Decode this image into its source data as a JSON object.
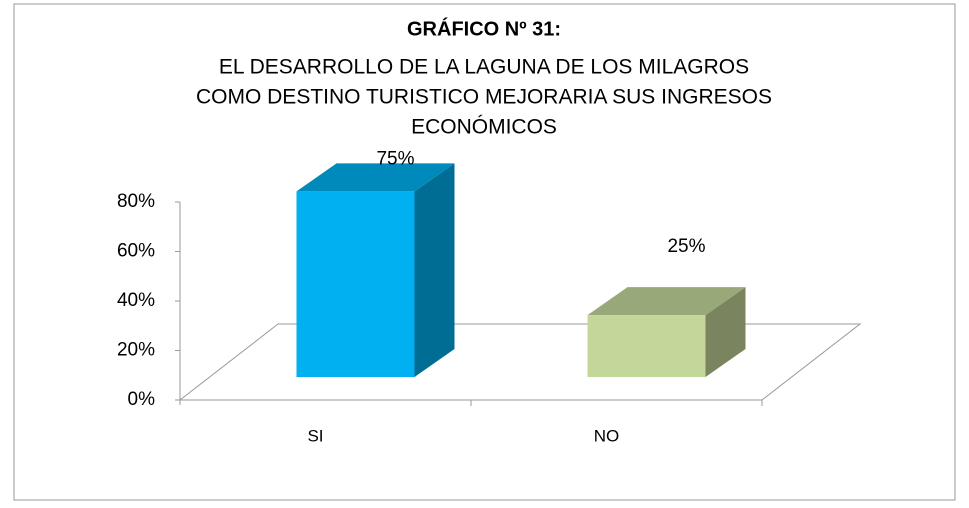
{
  "chart_data": {
    "type": "bar3d",
    "title": "GRÁFICO Nº 31:",
    "subtitle": [
      "EL DESARROLLO DE LA LAGUNA DE LOS MILAGROS",
      "COMO DESTINO TURISTICO MEJORARIA SUS INGRESOS",
      "ECONÓMICOS"
    ],
    "categories": [
      "SI",
      "NO"
    ],
    "values": [
      75,
      25
    ],
    "value_labels": [
      "75%",
      "25%"
    ],
    "colors": [
      "#00b0f0",
      "#c4d79b"
    ],
    "ylim": [
      0,
      80
    ],
    "yticks": [
      {
        "value": 0,
        "label": "0%"
      },
      {
        "value": 20,
        "label": "20%"
      },
      {
        "value": 40,
        "label": "40%"
      },
      {
        "value": 60,
        "label": "60%"
      },
      {
        "value": 80,
        "label": "80%"
      }
    ]
  }
}
